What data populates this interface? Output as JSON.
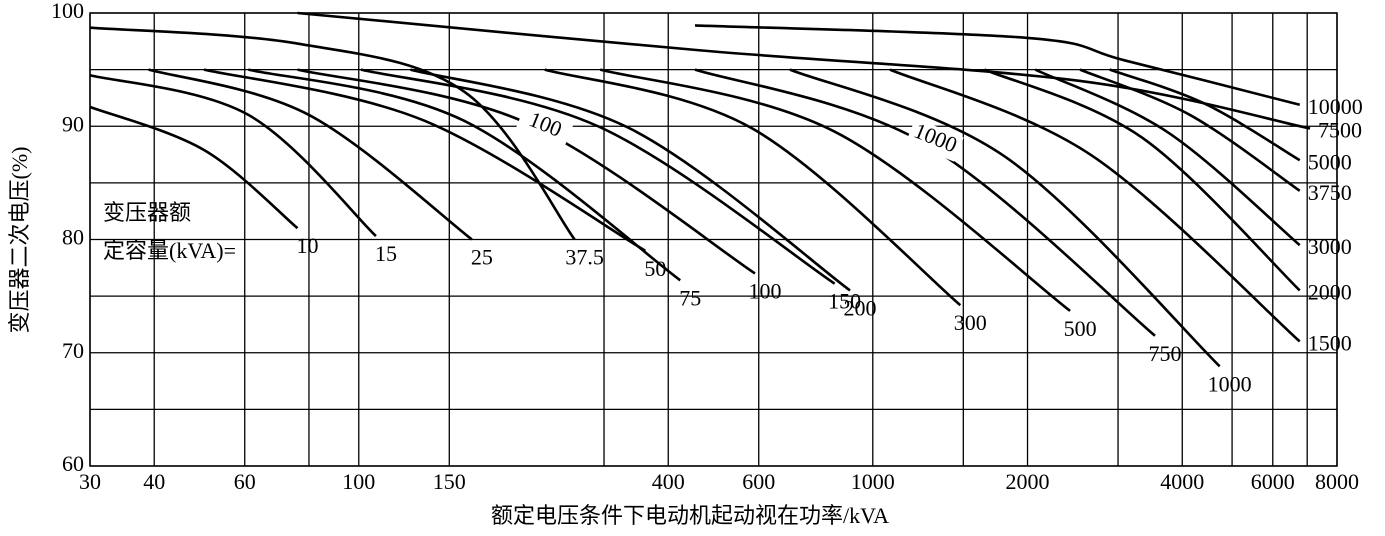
{
  "chart_data": {
    "type": "line",
    "x_label": "额定电压条件下电动机起动视在功率/kVA",
    "y_label": "变压器二次电压(%)",
    "legend_title": [
      "变压器额",
      "定容量(kVA)="
    ],
    "xscale": "log",
    "xlim": [
      30,
      8000
    ],
    "xticks": [
      30,
      40,
      60,
      100,
      150,
      400,
      600,
      1000,
      2000,
      4000,
      6000,
      8000
    ],
    "minor_xticks": [
      80,
      300,
      1500,
      3000,
      5000,
      7000
    ],
    "ylim": [
      60,
      100
    ],
    "yticks": [
      60,
      70,
      80,
      90,
      100
    ],
    "minor_yticks": [
      65,
      75,
      85,
      95
    ],
    "grid": true,
    "color": "#000000",
    "series": [
      {
        "name": "10",
        "x": [
          30,
          50,
          76
        ],
        "values": [
          91.7,
          87.9,
          81
        ]
      },
      {
        "name": "15",
        "x": [
          30,
          61,
          108
        ],
        "values": [
          94.5,
          91,
          80.3
        ]
      },
      {
        "name": "25",
        "x": [
          39,
          80,
          166
        ],
        "values": [
          95,
          91,
          80
        ]
      },
      {
        "name": "37.5",
        "x": [
          30,
          76,
          161,
          263
        ],
        "values": [
          98.7,
          97.3,
          93,
          80
        ]
      },
      {
        "name": "50",
        "x": [
          50,
          134,
          361
        ],
        "values": [
          95,
          90.5,
          79
        ]
      },
      {
        "name": "75",
        "x": [
          61,
          160,
          422
        ],
        "values": [
          95,
          90.5,
          76.4
        ]
      },
      {
        "name": "100",
        "x": [
          76,
          212,
          590
        ],
        "values": [
          95,
          90.3,
          77
        ]
      },
      {
        "name": "150",
        "x": [
          101,
          292,
          843
        ],
        "values": [
          95,
          90,
          76.1
        ]
      },
      {
        "name": "200",
        "x": [
          126,
          337,
          903
        ],
        "values": [
          95,
          89.8,
          75.5
        ]
      },
      {
        "name": "300",
        "x": [
          230,
          583,
          1480
        ],
        "values": [
          95,
          89.8,
          74.2
        ]
      },
      {
        "name": "500",
        "x": [
          295,
          845,
          2420
        ],
        "values": [
          95,
          89.5,
          73.7
        ]
      },
      {
        "name": "750",
        "x": [
          451,
          1260,
          3540
        ],
        "values": [
          95,
          88.5,
          71.5
        ]
      },
      {
        "name": "1000",
        "x": [
          690,
          1810,
          4730
        ],
        "values": [
          95,
          87.3,
          68.8
        ]
      },
      {
        "name": "1500",
        "x": [
          1080,
          2650,
          6770
        ],
        "values": [
          95,
          87.5,
          71
        ]
      },
      {
        "name": "2000",
        "x": [
          1650,
          3340,
          6770
        ],
        "values": [
          95,
          89,
          75.5
        ]
      },
      {
        "name": "3000",
        "x": [
          2070,
          3740,
          6770
        ],
        "values": [
          95,
          89.5,
          79.5
        ]
      },
      {
        "name": "3750",
        "x": [
          2530,
          4140,
          6770
        ],
        "values": [
          95,
          91,
          84.3
        ]
      },
      {
        "name": "5000",
        "x": [
          2890,
          4420,
          6770
        ],
        "values": [
          95,
          92,
          87
        ]
      },
      {
        "name": "7500",
        "x": [
          76,
          462,
          2530,
          7090
        ],
        "values": [
          100,
          96.7,
          94,
          89.8
        ]
      },
      {
        "name": "10000",
        "x": [
          451,
          2000,
          3100,
          6770
        ],
        "values": [
          98.9,
          97.8,
          95.8,
          91.9
        ]
      }
    ],
    "annotations": [
      {
        "text": "100",
        "x": 230,
        "y": 90
      },
      {
        "text": "1000",
        "x": 1320,
        "y": 88.8
      }
    ]
  }
}
